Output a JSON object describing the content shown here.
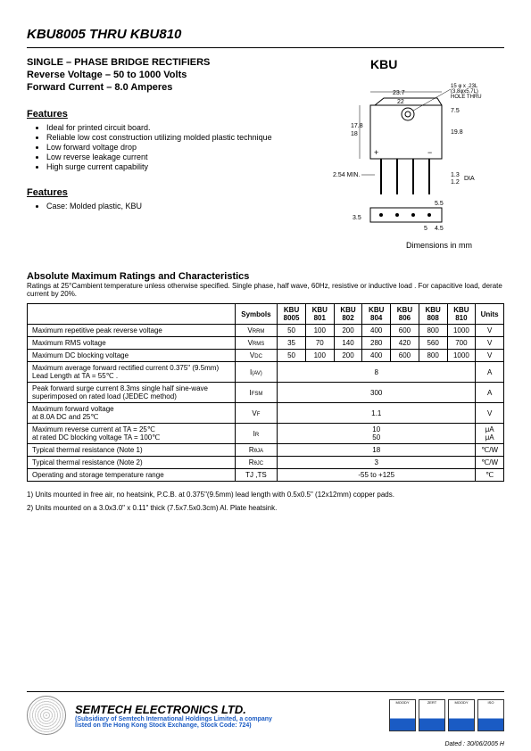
{
  "header": {
    "title": "KBU8005 THRU KBU810",
    "subtitle1": "SINGLE – PHASE BRIDGE RECTIFIERS",
    "subtitle2": "Reverse Voltage – 50 to 1000 Volts",
    "subtitle3": "Forward Current – 8.0 Amperes",
    "package_label": "KBU"
  },
  "features": {
    "heading": "Features",
    "items": [
      "Ideal for printed circuit board.",
      "Reliable low cost construction utilizing molded plastic technique",
      "Low forward voltage drop",
      "Low reverse leakage current",
      "High surge current capability"
    ],
    "heading2": "Features",
    "case_item": "Case: Molded plastic, KBU"
  },
  "diagram": {
    "top_hole": "15 φ x .23L\n(3.8φx5.7L)\nHOLE THRU",
    "w1": "23.7",
    "w2": "22",
    "h1": "7.5",
    "h2": "19.8",
    "h3": "17.8",
    "h4": "18",
    "lead": "2.54 MIN.",
    "dia": "1.3",
    "dia2": "1.2",
    "dia_label": "DIA",
    "b1": "3.5",
    "b2": "5",
    "b3": "4.5",
    "b4": "5.5",
    "caption": "Dimensions in mm"
  },
  "ratings": {
    "heading": "Absolute Maximum Ratings and Characteristics",
    "sub": "Ratings at 25°Cambient temperature unless otherwise specified. Single phase, half wave, 60Hz, resistive or inductive load . For capacitive load, derate current by 20%.",
    "col_symbols": "Symbols",
    "cols": [
      "KBU 8005",
      "KBU 801",
      "KBU 802",
      "KBU 804",
      "KBU 806",
      "KBU 808",
      "KBU 810"
    ],
    "col_units": "Units",
    "rows": [
      {
        "param": "Maximum repetitive peak reverse voltage",
        "sym": "V",
        "sub": "RRM",
        "vals": [
          "50",
          "100",
          "200",
          "400",
          "600",
          "800",
          "1000"
        ],
        "unit": "V"
      },
      {
        "param": "Maximum RMS voltage",
        "sym": "V",
        "sub": "RMS",
        "vals": [
          "35",
          "70",
          "140",
          "280",
          "420",
          "560",
          "700"
        ],
        "unit": "V"
      },
      {
        "param": "Maximum DC blocking voltage",
        "sym": "V",
        "sub": "DC",
        "vals": [
          "50",
          "100",
          "200",
          "400",
          "600",
          "800",
          "1000"
        ],
        "unit": "V"
      },
      {
        "param": "Maximum average forward rectified current 0.375\" (9.5mm) Lead Length at TA = 55℃ .",
        "sym": "I",
        "sub": "(AV)",
        "span": "8",
        "unit": "A"
      },
      {
        "param": "Peak forward surge current 8.3ms single half sine-wave superimposed on rated load (JEDEC method)",
        "sym": "I",
        "sub": "FSM",
        "span": "300",
        "unit": "A"
      },
      {
        "param": "Maximum forward voltage\nat 8.0A DC and 25℃",
        "sym": "V",
        "sub": "F",
        "span": "1.1",
        "unit": "V"
      },
      {
        "param": "Maximum reverse current at TA = 25℃\nat rated DC blocking voltage    TA = 100℃",
        "sym": "I",
        "sub": "R",
        "span": "10\n50",
        "unit": "μA\nμA"
      },
      {
        "param": "Typical thermal resistance (Note 1)",
        "sym": "R",
        "sub": "θJA",
        "span": "18",
        "unit": "℃/W"
      },
      {
        "param": "Typical thermal resistance (Note 2)",
        "sym": "R",
        "sub": "θJC",
        "span": "3",
        "unit": "℃/W"
      },
      {
        "param": "Operating and storage temperature range",
        "sym": "TJ ,TS",
        "sub": "",
        "span": "-55 to +125",
        "unit": "℃"
      }
    ]
  },
  "notes": {
    "n1": "1)   Units mounted in free air, no heatsink, P.C.B. at 0.375\"(9.5mm) lead length with 0.5x0.5\" (12x12mm) copper pads.",
    "n2": "2)   Units mounted on a 3.0x3.0\" x 0.11\" thick (7.5x7.5x0.3cm) Al. Plate heatsink."
  },
  "footer": {
    "company": "SEMTECH ELECTRONICS LTD.",
    "sub1": "(Subsidiary of Semtech International Holdings Limited, a company",
    "sub2": "listed on the Hong Kong Stock Exchange, Stock Code: 724)",
    "dated": "Dated : 30/06/2005  H"
  }
}
